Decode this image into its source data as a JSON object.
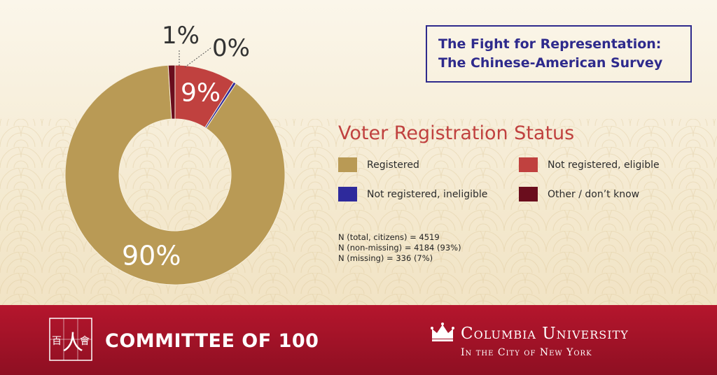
{
  "header": {
    "title_line1": "The Fight for Representation:",
    "title_line2": "The Chinese-American Survey"
  },
  "chart_data": {
    "type": "pie",
    "title": "Voter Registration Status",
    "slices": [
      {
        "name": "Registered",
        "value": 90,
        "label": "90%",
        "color": "#b99a55"
      },
      {
        "name": "Not registered, eligible",
        "value": 9,
        "label": "9%",
        "color": "#c0413f"
      },
      {
        "name": "Not registered, ineligible",
        "value": 0.4,
        "label": "0%",
        "color": "#2e2a9c"
      },
      {
        "name": "Other / don't know",
        "value": 1,
        "label": "1%",
        "color": "#6a0d1d"
      }
    ],
    "donut": true,
    "legend_placement": "right"
  },
  "legend": [
    {
      "label": "Registered",
      "color": "#b99a55"
    },
    {
      "label": "Not registered, eligible",
      "color": "#c0413f"
    },
    {
      "label": "Not registered, ineligible",
      "color": "#2e2a9c"
    },
    {
      "label": "Other / don’t know",
      "color": "#6a0d1d"
    }
  ],
  "notes": {
    "line1": "N (total, citizens) = 4519",
    "line2": "N (non-missing) = 4184 (93%)",
    "line3": "N (missing) = 336 (7%)"
  },
  "footer": {
    "org_name": "COMMITTEE OF 100",
    "logo_chars": [
      "百",
      "人",
      "會"
    ],
    "registered_mark": "®",
    "university_name": "Columbia University",
    "university_sub": "In the City of New York"
  },
  "colors": {
    "title_blue": "#2e2a8c",
    "chart_title_red": "#c0413f",
    "footer_red": "#a3132a"
  }
}
